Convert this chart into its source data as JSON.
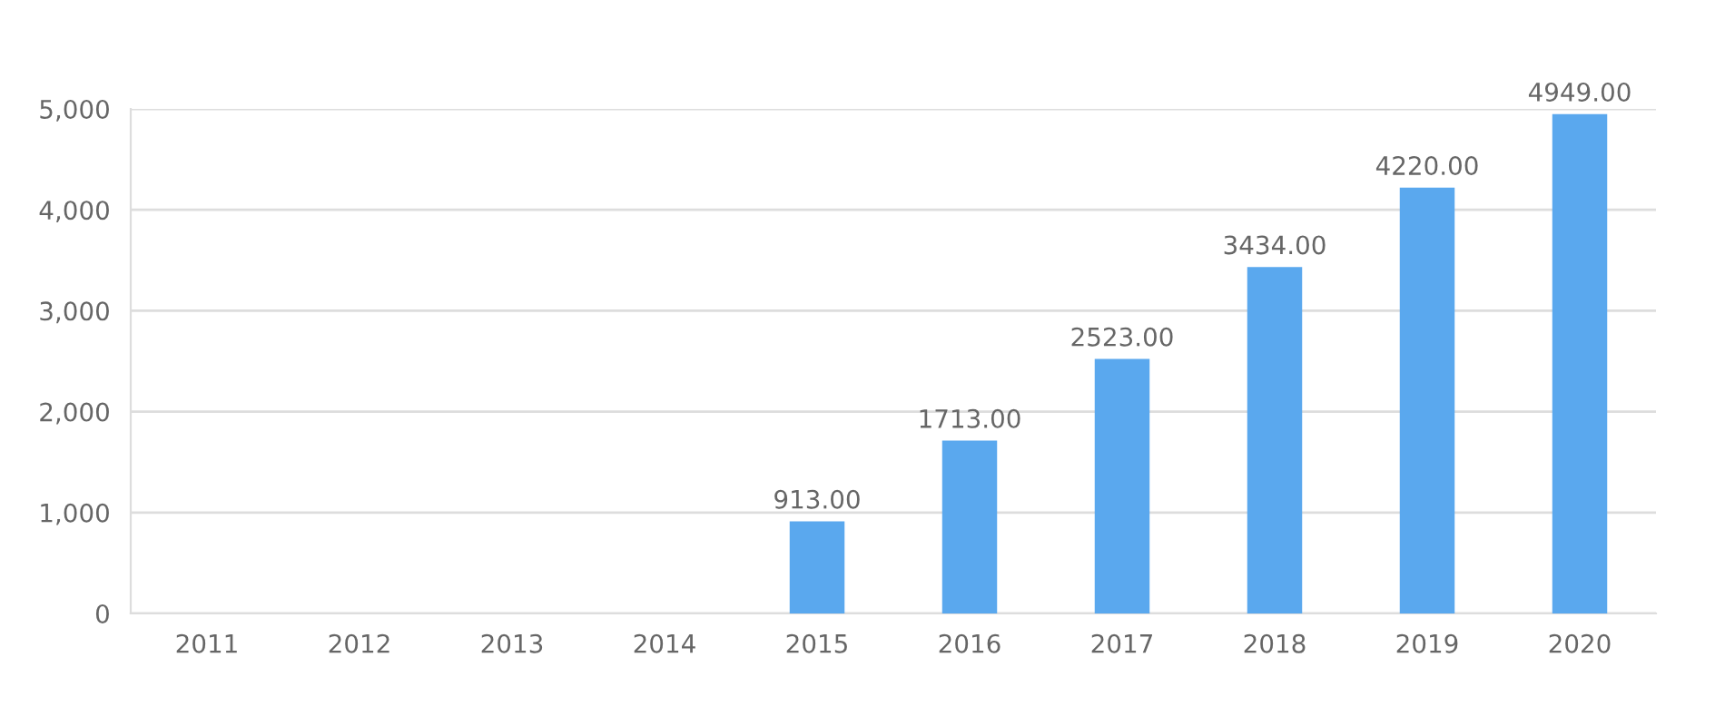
{
  "chart_data": {
    "type": "bar",
    "categories": [
      "2011",
      "2012",
      "2013",
      "2014",
      "2015",
      "2016",
      "2017",
      "2018",
      "2019",
      "2020"
    ],
    "series": [
      {
        "color": "#5aa8ee",
        "values": [
          null,
          null,
          null,
          null,
          913,
          1713,
          2523,
          3434,
          4220,
          4949
        ],
        "value_labels": [
          null,
          null,
          null,
          null,
          "913.00",
          "1713.00",
          "2523.00",
          "3434.00",
          "4220.00",
          "4949.00"
        ]
      }
    ],
    "ylim": [
      0,
      5000
    ],
    "yticks": [
      0,
      {
        "value": 1000,
        "label": "1,000"
      },
      {
        "value": 2000,
        "label": "2,000"
      },
      {
        "value": 3000,
        "label": "3,000"
      },
      {
        "value": 4000,
        "label": "4,000"
      },
      {
        "value": 5000,
        "label": "5,000"
      }
    ],
    "grid": "y"
  }
}
